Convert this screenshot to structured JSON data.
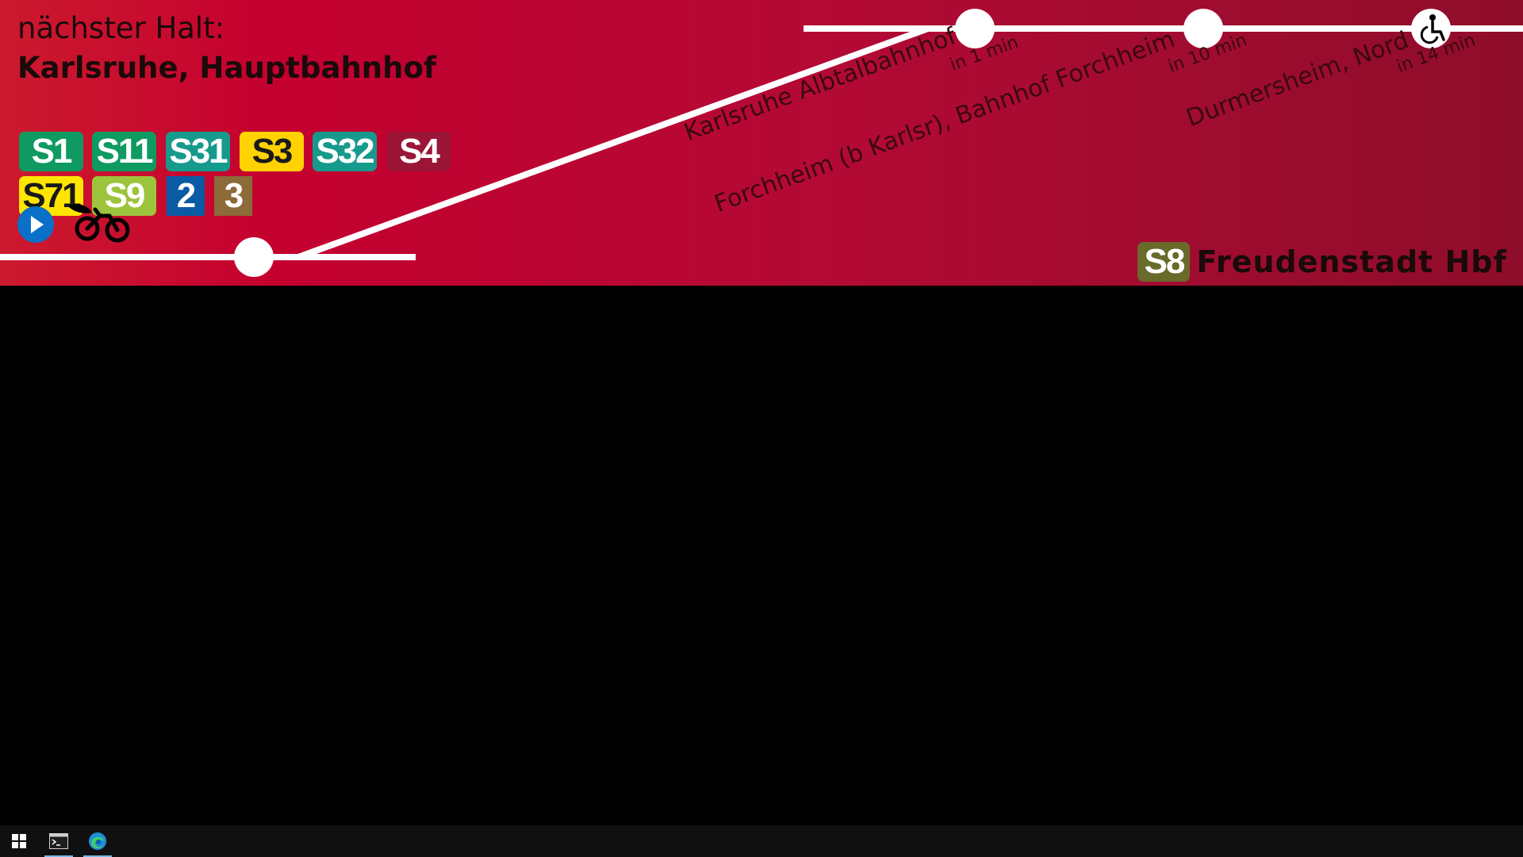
{
  "header": {
    "next_stop_label": "nächster Halt:",
    "next_stop_name": "Karlsruhe, Hauptbahnhof"
  },
  "connections": [
    {
      "line": "S1",
      "bg": "#0f9a62",
      "fg": "#ffffff"
    },
    {
      "line": "S11",
      "bg": "#0f9a62",
      "fg": "#ffffff"
    },
    {
      "line": "S31",
      "bg": "#169a8c",
      "fg": "#ffffff"
    },
    {
      "line": "S3",
      "bg": "#ffd200",
      "fg": "#1a1a1a"
    },
    {
      "line": "S32",
      "bg": "#169a8c",
      "fg": "#ffffff"
    },
    {
      "line": "S4",
      "bg": "#9b1537",
      "fg": "#ffffff"
    },
    {
      "line": "S71",
      "bg": "#ffe600",
      "fg": "#1a1a1a"
    },
    {
      "line": "S9",
      "bg": "#9cc43c",
      "fg": "#ffffff"
    },
    {
      "line": "2",
      "bg": "#0a5aa4",
      "fg": "#ffffff"
    },
    {
      "line": "3",
      "bg": "#8c6a3a",
      "fg": "#ffffff"
    }
  ],
  "icons": {
    "play": "play-icon",
    "bike": "bicycle-icon",
    "wheelchair": "wheelchair-icon"
  },
  "upcoming_stops": [
    {
      "name": "Karlsruhe Albtalbahnhof",
      "eta": "in 1 min"
    },
    {
      "name": "Forchheim (b Karlsr), Bahnhof Forchheim",
      "eta": "in 10 min"
    },
    {
      "name": "Durmersheim, Nord",
      "eta": "in 14 min"
    }
  ],
  "destination": {
    "line": "S8",
    "line_bg": "#6a6a2a",
    "line_fg": "#ffffff",
    "name": "Freudenstadt Hbf"
  },
  "colors": {
    "banner_start": "#cc1a2e",
    "banner_end": "#8e0d2a",
    "route": "#ffffff"
  },
  "taskbar": {
    "items": [
      "start-icon",
      "terminal-icon",
      "edge-icon"
    ]
  }
}
